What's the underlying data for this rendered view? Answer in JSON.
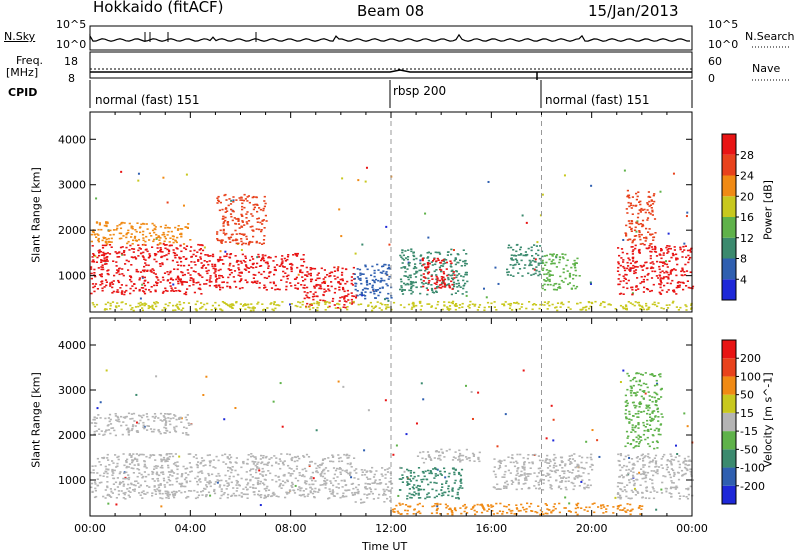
{
  "header": {
    "station": "Hokkaido (fitACF)",
    "beam": "Beam 08",
    "date": "15/Jan/2013"
  },
  "strip_labels": {
    "nsky": "N.Sky",
    "nsky_top": "10^5",
    "nsky_bottom": "10^0",
    "nsearch": "N.Search",
    "nsearch_top": "10^5",
    "nsearch_bottom": "10^0",
    "freq_line1": "Freq.",
    "freq_line2": "[MHz]",
    "freq_top": "18",
    "freq_bottom": "8",
    "nave": "Nave",
    "nave_top": "60",
    "nave_bottom": "0",
    "cpid": "CPID"
  },
  "cpid_segments": [
    "normal (fast) 151",
    "rbsp 200",
    "normal (fast) 151"
  ],
  "chart_data": [
    {
      "type": "heatmap",
      "panel": "power",
      "ylabel": "Slant Range [km]",
      "yticks": [
        "1000",
        "2000",
        "3000",
        "4000"
      ],
      "ylim": [
        200,
        4600
      ],
      "xlim": [
        0,
        24
      ],
      "colorbar": {
        "label": "Power [dB]",
        "ticks": [
          "4",
          "8",
          "12",
          "16",
          "20",
          "24",
          "28"
        ],
        "colors": [
          "#1e28d8",
          "#2f5fb0",
          "#3b8a6e",
          "#5fb24a",
          "#c8c81e",
          "#f08a14",
          "#e8421c",
          "#e81414"
        ]
      },
      "regions": [
        {
          "t": [
            0,
            4.5
          ],
          "r": [
            600,
            1700
          ],
          "color": "#e81414"
        },
        {
          "t": [
            4.5,
            8.5
          ],
          "r": [
            700,
            1500
          ],
          "color": "#e81414"
        },
        {
          "t": [
            8.5,
            10.5
          ],
          "r": [
            300,
            1200
          ],
          "color": "#e81414"
        },
        {
          "t": [
            5,
            7
          ],
          "r": [
            1700,
            2800
          ],
          "color": "#e8421c"
        },
        {
          "t": [
            0,
            4
          ],
          "r": [
            1700,
            2200
          ],
          "color": "#f08a14"
        },
        {
          "t": [
            10.5,
            12
          ],
          "r": [
            500,
            1300
          ],
          "color": "#2f5fb0"
        },
        {
          "t": [
            12.3,
            15
          ],
          "r": [
            600,
            1600
          ],
          "color": "#3b8a6e"
        },
        {
          "t": [
            13.2,
            14.5
          ],
          "r": [
            700,
            1400
          ],
          "color": "#e81414"
        },
        {
          "t": [
            16.5,
            18
          ],
          "r": [
            1000,
            1700
          ],
          "color": "#3b8a6e"
        },
        {
          "t": [
            18,
            19.5
          ],
          "r": [
            700,
            1500
          ],
          "color": "#5fb24a"
        },
        {
          "t": [
            21,
            24
          ],
          "r": [
            600,
            1700
          ],
          "color": "#e81414"
        },
        {
          "t": [
            21.3,
            22.5
          ],
          "r": [
            1700,
            2900
          ],
          "color": "#e8421c"
        },
        {
          "t": [
            0,
            24
          ],
          "r": [
            250,
            450
          ],
          "color": "#c8c81e"
        }
      ]
    },
    {
      "type": "heatmap",
      "panel": "velocity",
      "ylabel": "Slant Range [km]",
      "yticks": [
        "1000",
        "2000",
        "3000",
        "4000"
      ],
      "ylim": [
        200,
        4600
      ],
      "xlim": [
        0,
        24
      ],
      "xticks": [
        "00:00",
        "04:00",
        "08:00",
        "12:00",
        "16:00",
        "20:00",
        "00:00"
      ],
      "xlabel": "Time UT",
      "colorbar": {
        "label": "Velocity [m s^-1]",
        "ticks": [
          "200",
          "100",
          "50",
          "15",
          "-15",
          "-50",
          "-100",
          "-200"
        ],
        "colors": [
          "#1e28d8",
          "#2f5fb0",
          "#3b8a6e",
          "#5fb24a",
          "#b4b4b4",
          "#c8c81e",
          "#f08a14",
          "#e8421c",
          "#e81414"
        ]
      },
      "regions": [
        {
          "t": [
            0,
            10.5
          ],
          "r": [
            600,
            1600
          ],
          "color": "#b4b4b4"
        },
        {
          "t": [
            10.5,
            12
          ],
          "r": [
            500,
            1300
          ],
          "color": "#b4b4b4"
        },
        {
          "t": [
            12.3,
            14.8
          ],
          "r": [
            600,
            1300
          ],
          "color": "#3b8a6e"
        },
        {
          "t": [
            13,
            15.5
          ],
          "r": [
            1400,
            1700
          ],
          "color": "#b4b4b4"
        },
        {
          "t": [
            16,
            20
          ],
          "r": [
            800,
            1600
          ],
          "color": "#b4b4b4"
        },
        {
          "t": [
            21,
            24
          ],
          "r": [
            600,
            1600
          ],
          "color": "#b4b4b4"
        },
        {
          "t": [
            21.3,
            22.8
          ],
          "r": [
            1700,
            3400
          ],
          "color": "#5fb24a"
        },
        {
          "t": [
            12,
            22
          ],
          "r": [
            250,
            500
          ],
          "color": "#f08a14"
        },
        {
          "t": [
            0,
            4
          ],
          "r": [
            2000,
            2500
          ],
          "color": "#b4b4b4"
        }
      ]
    }
  ]
}
